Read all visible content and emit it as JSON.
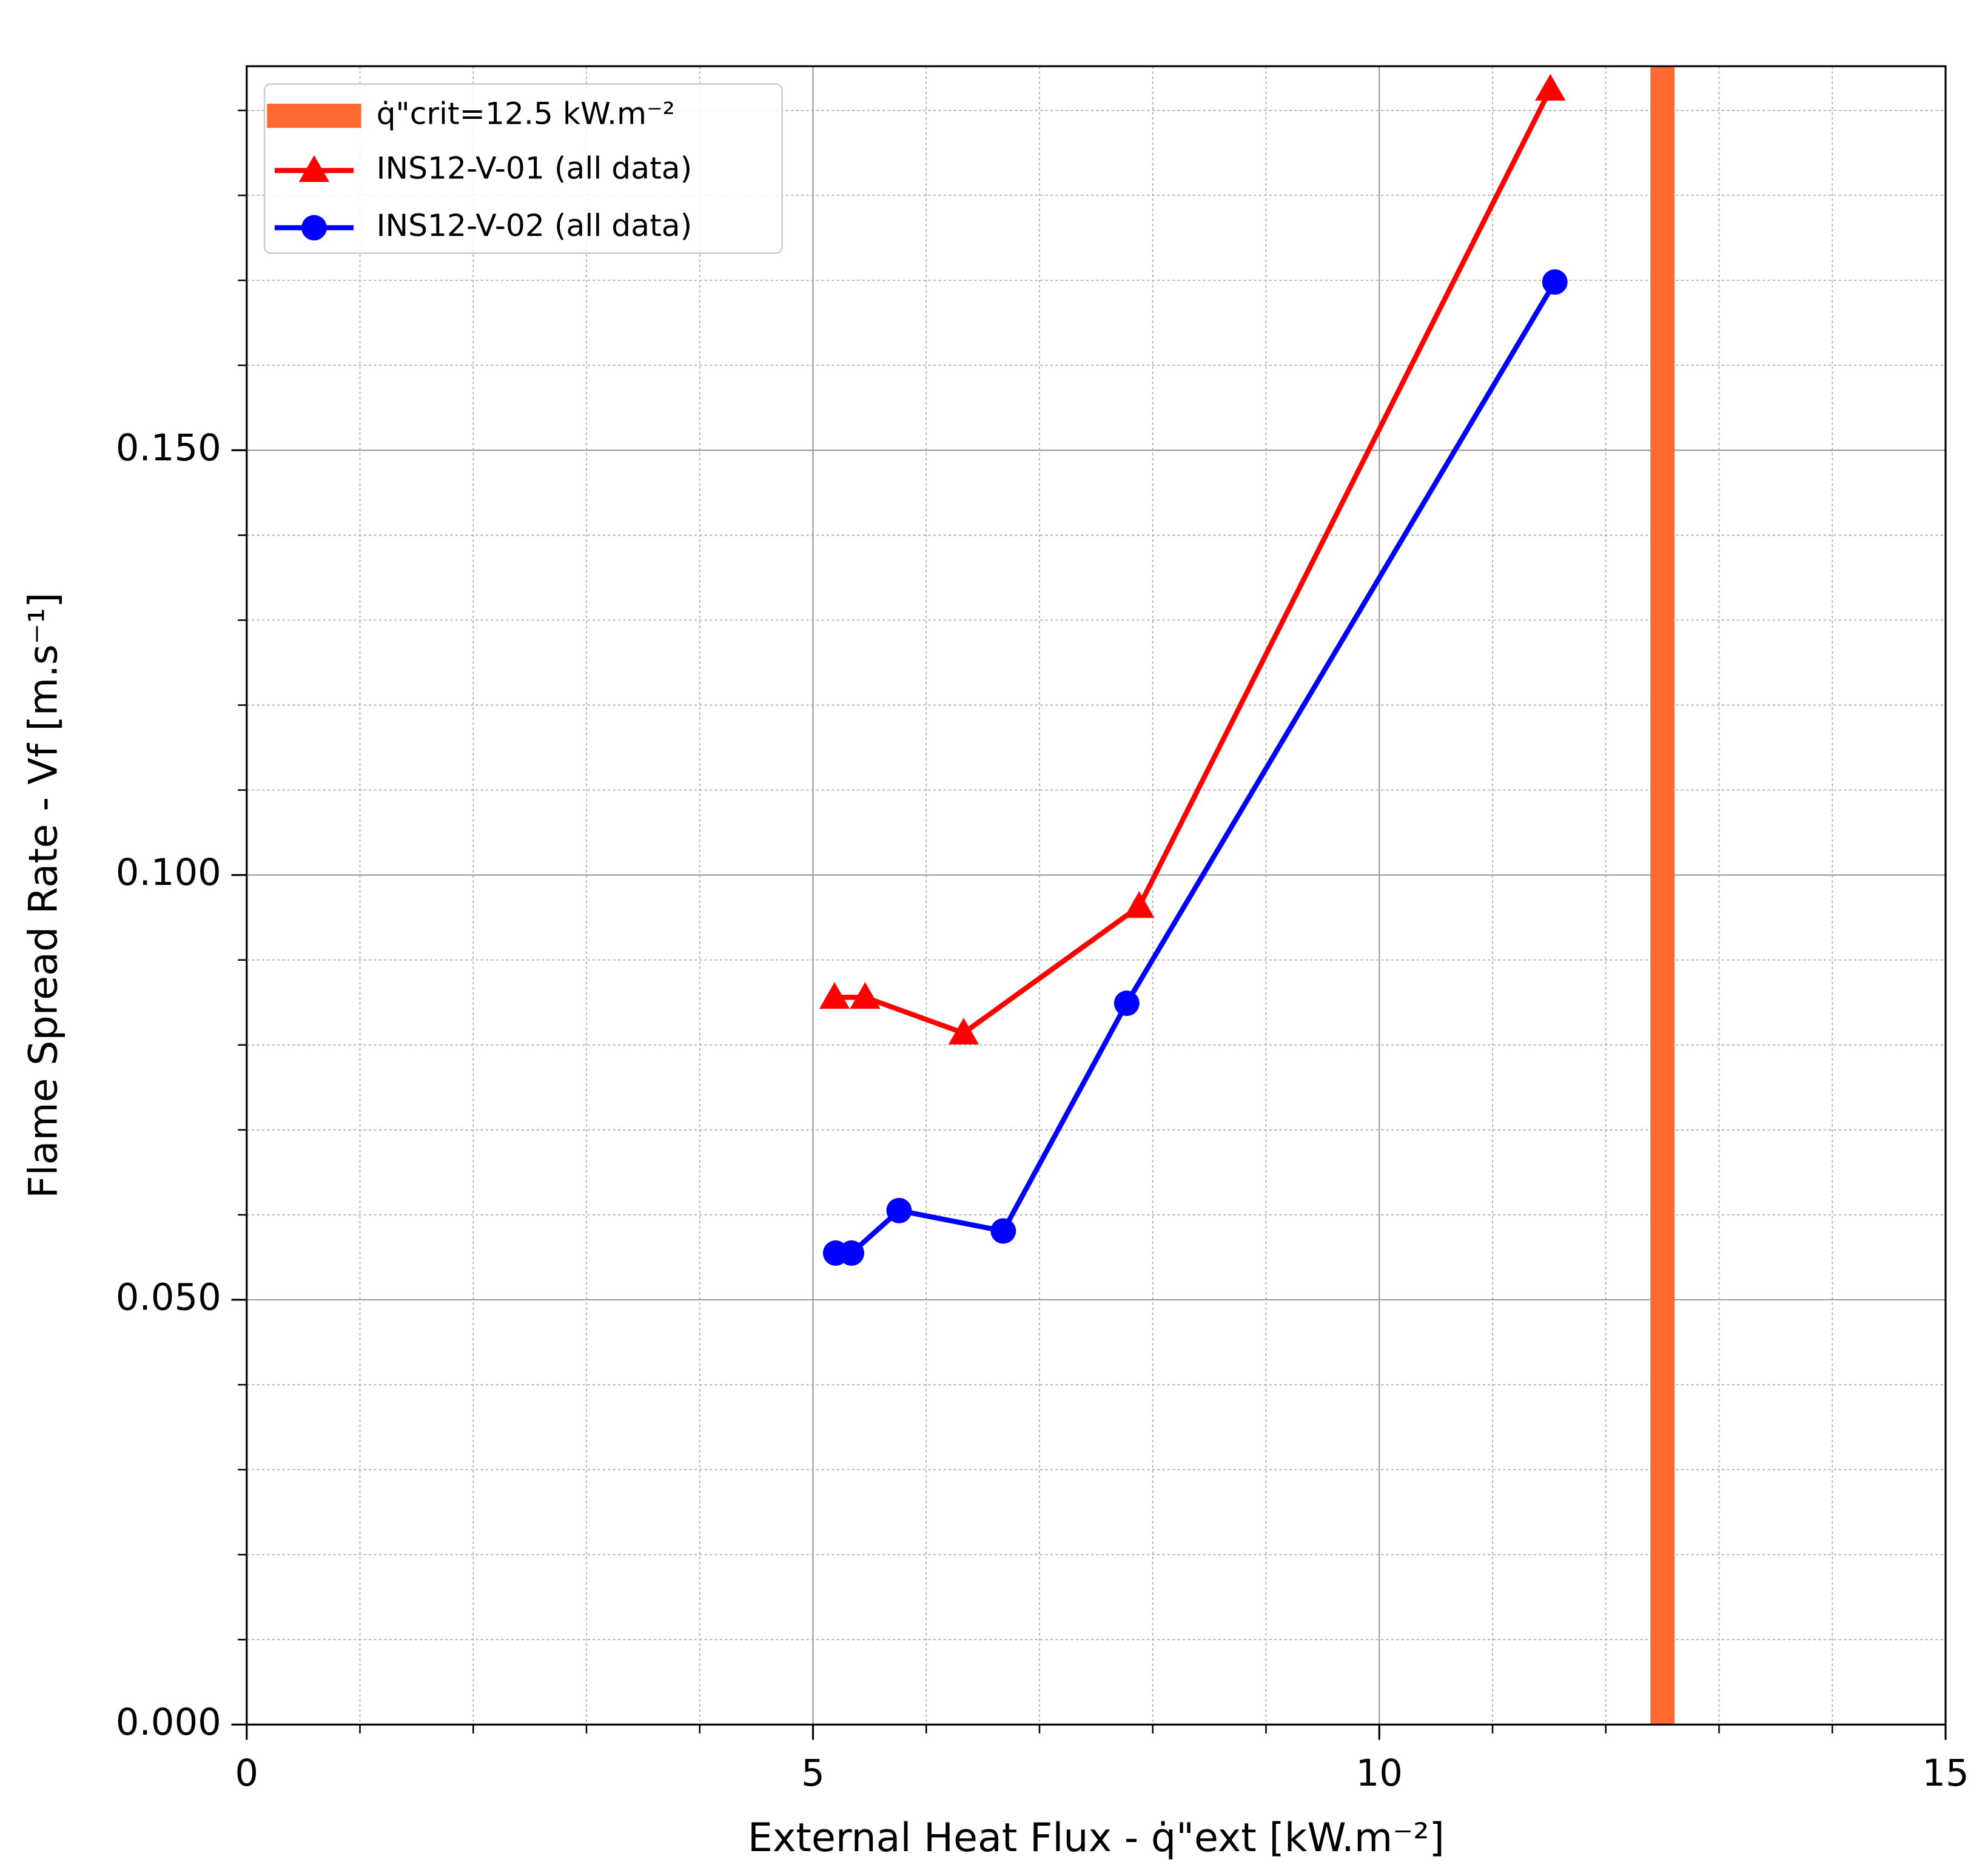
{
  "chart_data": {
    "type": "line",
    "xlabel": "External Heat Flux - q̇\"ext [kW.m⁻²]",
    "ylabel": "Flame Spread Rate - Vf [m.s⁻¹]",
    "xlim": [
      0,
      15
    ],
    "ylim": [
      0,
      0.1952
    ],
    "xticks": [
      0,
      5,
      10,
      15
    ],
    "yticks": [
      {
        "value": 0,
        "label": "0.000"
      },
      {
        "value": 0.05,
        "label": "0.050"
      },
      {
        "value": 0.1,
        "label": "0.100"
      },
      {
        "value": 0.15,
        "label": "0.150"
      }
    ],
    "xminorticks": [
      1,
      2,
      3,
      4,
      6,
      7,
      8,
      9,
      11,
      12,
      13,
      14
    ],
    "yminorticks": [
      0.01,
      0.02,
      0.03,
      0.04,
      0.06,
      0.07,
      0.08,
      0.09,
      0.11,
      0.12,
      0.13,
      0.14,
      0.16,
      0.17,
      0.18,
      0.19
    ],
    "grid": true,
    "legend": "upper left",
    "vlines": [
      {
        "name": "q̇\"crit=12.5 kW.m⁻²",
        "x": 12.5,
        "color": "#ff6a33"
      }
    ],
    "series": [
      {
        "name": "INS12-V-01 (all data)",
        "color": "#ff0000",
        "marker": "triangle",
        "x": [
          5.19,
          5.46,
          6.33,
          7.88,
          11.51
        ],
        "values": [
          0.0856,
          0.0856,
          0.0814,
          0.0963,
          0.1925
        ]
      },
      {
        "name": "INS12-V-02 (all data)",
        "color": "#0000ff",
        "marker": "circle",
        "x": [
          5.2,
          5.34,
          5.76,
          6.68,
          7.77,
          11.55
        ],
        "values": [
          0.0555,
          0.0555,
          0.0605,
          0.0581,
          0.0849,
          0.1698
        ]
      }
    ]
  }
}
